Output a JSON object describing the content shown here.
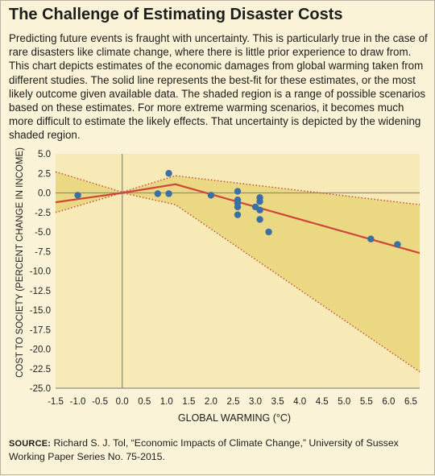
{
  "title": "The Challenge of Estimating Disaster Costs",
  "description": "Predicting future events is fraught with uncertainty. This is particularly true in the case of rare disasters like climate change, where there is little prior experience to draw from. This chart depicts estimates of the economic damages from global warming taken from different studies. The solid line represents the best-fit for these estimates, or the most likely outcome given available data. The shaded region is a range of possible scenarios based on these estimates. For more extreme warming scenarios, it becomes much more difficult to estimate the likely effects. That uncertainty is depicted by the widening shaded region.",
  "source": {
    "label": "SOURCE:",
    "text": "Richard S. J. Tol, “Economic Impacts of Climate Change,” University of Sussex Working Paper Series No. 75-2015."
  },
  "colors": {
    "plot_background": "#f7eab6",
    "shaded_region": "#ead883",
    "best_fit_line": "#d0463b",
    "bound_lines": "#c8473b",
    "points": "#3b6fa5",
    "axis": "#8f8f8f"
  },
  "chart_data": {
    "type": "scatter",
    "xlabel": "GLOBAL WARMING (°C)",
    "ylabel": "COST TO SOCIETY (PERCENT CHANGE IN INCOME)",
    "xlim": [
      -1.5,
      6.7
    ],
    "ylim": [
      -25.0,
      5.0
    ],
    "x_ticks": [
      "-1.5",
      "-1.0",
      "-0.5",
      "0.0",
      "0.5",
      "1.0",
      "1.5",
      "2.0",
      "2.5",
      "3.0",
      "3.5",
      "4.0",
      "4.5",
      "5.0",
      "5.5",
      "6.0",
      "6.5"
    ],
    "y_ticks": [
      "5.0",
      "2.5",
      "0.0",
      "-2.5",
      "-5.0",
      "-7.5",
      "-10.0",
      "-12.5",
      "-15.0",
      "-17.5",
      "-20.0",
      "-22.5",
      "-25.0"
    ],
    "grid": false,
    "points": [
      {
        "x": -1.0,
        "y": -0.3
      },
      {
        "x": 0.8,
        "y": -0.1
      },
      {
        "x": 1.05,
        "y": 2.5
      },
      {
        "x": 1.05,
        "y": -0.1
      },
      {
        "x": 2.0,
        "y": -0.3
      },
      {
        "x": 2.6,
        "y": 0.2
      },
      {
        "x": 2.6,
        "y": -0.9
      },
      {
        "x": 2.6,
        "y": -1.3
      },
      {
        "x": 2.6,
        "y": -1.8
      },
      {
        "x": 2.6,
        "y": -2.8
      },
      {
        "x": 3.0,
        "y": -1.8
      },
      {
        "x": 3.1,
        "y": -0.6
      },
      {
        "x": 3.1,
        "y": -1.1
      },
      {
        "x": 3.1,
        "y": -2.2
      },
      {
        "x": 3.1,
        "y": -3.4
      },
      {
        "x": 3.3,
        "y": -5.0
      },
      {
        "x": 5.6,
        "y": -5.9
      },
      {
        "x": 6.2,
        "y": -6.6
      }
    ],
    "best_fit": [
      {
        "x": -1.5,
        "y": -1.2
      },
      {
        "x": 0.0,
        "y": 0.0
      },
      {
        "x": 1.2,
        "y": 1.1
      },
      {
        "x": 6.7,
        "y": -7.7
      }
    ],
    "upper_bound": [
      {
        "x": -1.5,
        "y": 2.7
      },
      {
        "x": 0.0,
        "y": 0.1
      },
      {
        "x": 1.2,
        "y": 2.2
      },
      {
        "x": 6.7,
        "y": -1.5
      }
    ],
    "lower_bound": [
      {
        "x": -1.5,
        "y": -2.5
      },
      {
        "x": 0.0,
        "y": 0.0
      },
      {
        "x": 1.2,
        "y": -1.5
      },
      {
        "x": 6.7,
        "y": -22.9
      }
    ]
  }
}
